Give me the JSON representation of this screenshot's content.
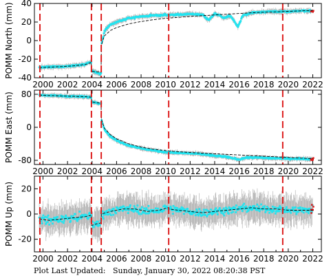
{
  "footer": {
    "prefix": "Plot Last Updated:",
    "timestamp": "Sunday, January 30, 2022 08:20:38 PST"
  },
  "colors": {
    "data_points": "#22e4f0",
    "error_bars": "#aaaaaa",
    "model": "#000000",
    "offset_lines": "#dd1c1c",
    "recent_points": "#dd1c1c"
  },
  "chart_data": [
    {
      "type": "scatter",
      "ylabel": "POMM North (mm)",
      "xlim": [
        1999.3,
        2022.7
      ],
      "ylim": [
        -40,
        40
      ],
      "yticks": [
        -40,
        -20,
        0,
        20,
        40
      ],
      "xticks": [
        2000,
        2002,
        2004,
        2006,
        2008,
        2010,
        2012,
        2014,
        2016,
        2018,
        2020,
        2022
      ],
      "offset_years": [
        1999.75,
        2003.95,
        2004.75,
        2010.25,
        2019.55
      ],
      "series": [
        {
          "x": [
            1999.7,
            2000.5,
            2001.5,
            2002.5,
            2003.5,
            2003.94,
            2003.96,
            2004.3,
            2004.74,
            2004.76,
            2005.0,
            2005.5,
            2006.0,
            2007.0,
            2008.0,
            2009.0,
            2010.0,
            2011.0,
            2012.0,
            2013.0,
            2013.5,
            2014.0,
            2014.4,
            2014.8,
            2015.2,
            2015.6,
            2015.9,
            2016.3,
            2017.0,
            2018.0,
            2019.0,
            2020.0,
            2021.0,
            2022.0
          ],
          "y": [
            -29,
            -28.5,
            -28,
            -27,
            -25,
            -23,
            -33,
            -34,
            -36,
            -5,
            10,
            17,
            20,
            24,
            26,
            27,
            27.5,
            28,
            28.5,
            28,
            22,
            29,
            27,
            24,
            27,
            21,
            15,
            27,
            30,
            31,
            31.5,
            31,
            32,
            32
          ]
        }
      ],
      "model_y": [
        -29,
        -28.6,
        -28,
        -27.2,
        -25.6,
        -23.5,
        -33,
        -33.6,
        -34,
        -5,
        5,
        11,
        14,
        18,
        20.5,
        22.5,
        24,
        25,
        26,
        26.8,
        27.2,
        27.6,
        28,
        28.3,
        28.6,
        28.9,
        29.1,
        29.4,
        29.9,
        30.5,
        31,
        31.5,
        32,
        32.4
      ]
    },
    {
      "type": "scatter",
      "ylabel": "POMM East (mm)",
      "xlim": [
        1999.3,
        2022.7
      ],
      "ylim": [
        -90,
        90
      ],
      "yticks": [
        -80,
        0,
        80
      ],
      "xticks": [
        2000,
        2002,
        2004,
        2006,
        2008,
        2010,
        2012,
        2014,
        2016,
        2018,
        2020,
        2022
      ],
      "offset_years": [
        1999.75,
        2003.95,
        2004.75,
        2010.25,
        2019.55
      ],
      "series": [
        {
          "x": [
            1999.7,
            2000.5,
            2001.5,
            2002.5,
            2003.5,
            2003.94,
            2003.96,
            2004.3,
            2004.74,
            2004.76,
            2005.0,
            2005.5,
            2006.0,
            2007.0,
            2008.0,
            2009.0,
            2010.0,
            2011.0,
            2012.0,
            2013.0,
            2014.0,
            2015.0,
            2016.0,
            2016.5,
            2017.0,
            2018.0,
            2019.0,
            2020.0,
            2021.0,
            2022.0
          ],
          "y": [
            78,
            77,
            76,
            75,
            74,
            73,
            62,
            60,
            58,
            20,
            -5,
            -22,
            -32,
            -44,
            -51,
            -56,
            -60,
            -62,
            -63,
            -65,
            -69,
            -72,
            -78,
            -74,
            -73,
            -74,
            -75,
            -76,
            -76,
            -77
          ]
        }
      ],
      "model_y": [
        78,
        77,
        76,
        75,
        74,
        73,
        62,
        60,
        58,
        20,
        -2,
        -18,
        -28,
        -40,
        -48,
        -53,
        -56.5,
        -59,
        -61,
        -62.5,
        -64,
        -65.5,
        -67,
        -67.8,
        -68.5,
        -70,
        -71.5,
        -73,
        -74.5,
        -76
      ]
    },
    {
      "type": "scatter",
      "ylabel": "POMM Up (mm)",
      "xlim": [
        1999.3,
        2022.7
      ],
      "ylim": [
        -30,
        30
      ],
      "yticks": [
        -20,
        0,
        20
      ],
      "xticks": [
        2000,
        2002,
        2004,
        2006,
        2008,
        2010,
        2012,
        2014,
        2016,
        2018,
        2020,
        2022
      ],
      "offset_years": [
        1999.75,
        2003.95,
        2004.75,
        2010.25,
        2019.55
      ],
      "series": [
        {
          "x": [
            1999.7,
            2000.5,
            2001.5,
            2002.5,
            2003.5,
            2003.94,
            2003.96,
            2004.3,
            2004.74,
            2004.76,
            2005.5,
            2006.5,
            2007.5,
            2008.5,
            2009.5,
            2010.2,
            2010.3,
            2011.0,
            2012.0,
            2013.0,
            2014.0,
            2015.0,
            2016.0,
            2017.0,
            2018.0,
            2019.0,
            2020.0,
            2021.0,
            2022.0
          ],
          "y": [
            -4,
            -5,
            -4,
            -3,
            -2,
            -1,
            -9,
            -8,
            -7,
            0,
            2,
            4,
            4,
            2,
            3,
            5,
            4,
            3,
            2,
            1,
            2,
            3,
            4,
            5,
            4,
            4,
            3,
            3,
            3
          ]
        }
      ],
      "model_y": [
        -4,
        -5,
        -4,
        -3,
        -2,
        -1,
        -9,
        -8,
        -7,
        0,
        2,
        4,
        4,
        2,
        3,
        5,
        4,
        3,
        2,
        1,
        2,
        3,
        4,
        5,
        4,
        4,
        3,
        3,
        3
      ]
    }
  ]
}
